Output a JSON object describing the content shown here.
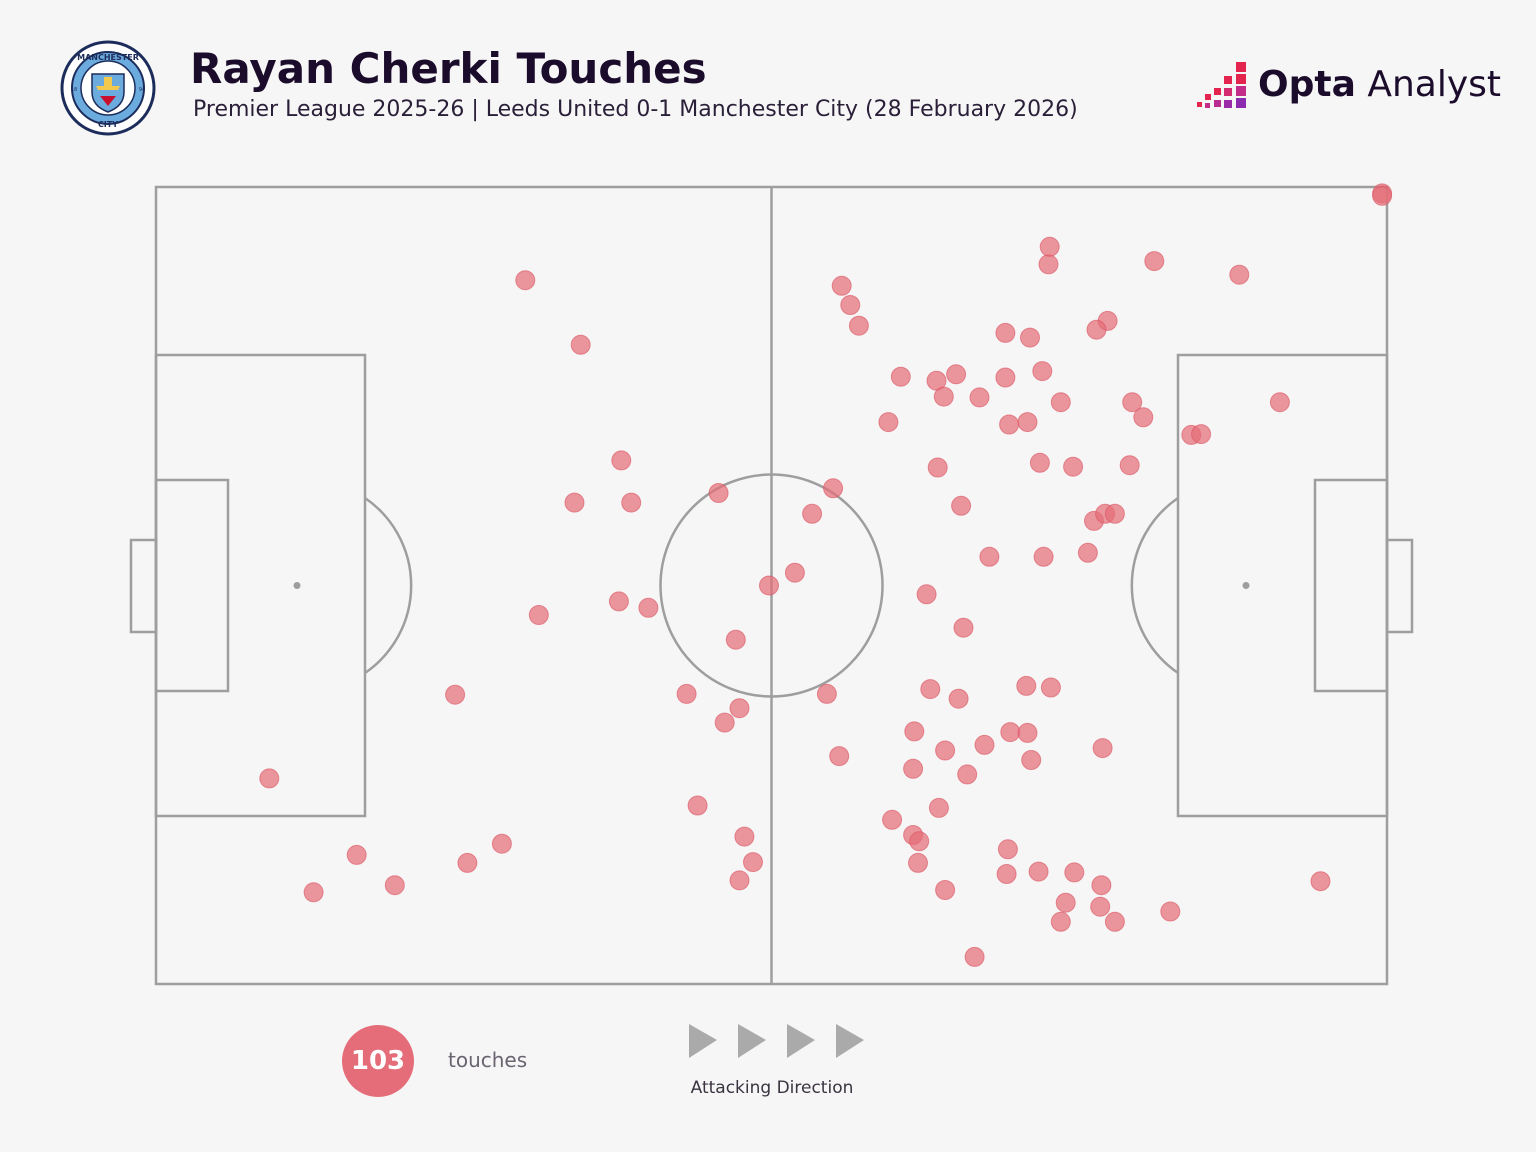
{
  "header": {
    "title": "Rayan Cherki Touches",
    "subtitle": "Premier League 2025-26 | Leeds United 0-1 Manchester City (28 February 2026)",
    "crest_top_text": "MANCHESTER",
    "crest_bottom_text": "CITY",
    "crest_year_left": "18",
    "crest_year_right": "94"
  },
  "brand": {
    "name_bold": "Opta",
    "name_light": "Analyst",
    "icon": "opta-pixel-icon"
  },
  "legend": {
    "count": "103",
    "count_label": "touches",
    "direction_label": "Attacking Direction",
    "direction_icon": "play-arrow-icon"
  },
  "colors": {
    "background": "#f7f6f6",
    "touch": "#e46d79",
    "pitch_lines": "#9e9e9e",
    "title": "#1b0c2c"
  },
  "chart_data": {
    "type": "scatter",
    "title": "Rayan Cherki Touches",
    "xlabel": "",
    "ylabel": "",
    "xlim": [
      0,
      100
    ],
    "ylim": [
      0,
      100
    ],
    "grid": false,
    "points": [
      [
        30.0,
        88.3
      ],
      [
        34.5,
        80.2
      ],
      [
        37.8,
        65.7
      ],
      [
        34.0,
        60.4
      ],
      [
        38.6,
        60.4
      ],
      [
        31.1,
        46.3
      ],
      [
        37.6,
        48.0
      ],
      [
        40.0,
        47.2
      ],
      [
        24.3,
        36.3
      ],
      [
        9.2,
        25.8
      ],
      [
        16.3,
        16.2
      ],
      [
        12.8,
        11.5
      ],
      [
        19.4,
        12.4
      ],
      [
        25.3,
        15.2
      ],
      [
        28.1,
        17.6
      ],
      [
        45.7,
        61.6
      ],
      [
        53.3,
        59.0
      ],
      [
        55.0,
        62.2
      ],
      [
        49.8,
        50.0
      ],
      [
        51.9,
        51.6
      ],
      [
        47.1,
        43.2
      ],
      [
        43.1,
        36.4
      ],
      [
        47.4,
        34.6
      ],
      [
        46.2,
        32.8
      ],
      [
        54.5,
        36.4
      ],
      [
        55.5,
        28.6
      ],
      [
        44.0,
        22.4
      ],
      [
        47.8,
        18.5
      ],
      [
        48.5,
        15.3
      ],
      [
        47.4,
        13.0
      ],
      [
        55.7,
        87.6
      ],
      [
        56.4,
        85.2
      ],
      [
        57.1,
        82.6
      ],
      [
        60.5,
        76.2
      ],
      [
        63.4,
        75.7
      ],
      [
        64.0,
        73.7
      ],
      [
        65.0,
        76.5
      ],
      [
        59.5,
        70.5
      ],
      [
        66.9,
        73.6
      ],
      [
        69.0,
        76.1
      ],
      [
        69.3,
        70.2
      ],
      [
        70.8,
        70.5
      ],
      [
        69.0,
        81.7
      ],
      [
        71.0,
        81.1
      ],
      [
        72.0,
        76.9
      ],
      [
        72.5,
        90.3
      ],
      [
        72.6,
        92.5
      ],
      [
        81.1,
        90.7
      ],
      [
        88.0,
        89.0
      ],
      [
        77.3,
        83.2
      ],
      [
        76.4,
        82.1
      ],
      [
        73.5,
        73.0
      ],
      [
        79.3,
        73.0
      ],
      [
        80.2,
        71.1
      ],
      [
        84.1,
        68.9
      ],
      [
        91.3,
        73.0
      ],
      [
        63.5,
        64.8
      ],
      [
        65.4,
        60.0
      ],
      [
        71.8,
        65.4
      ],
      [
        74.5,
        64.9
      ],
      [
        79.1,
        65.1
      ],
      [
        76.2,
        58.1
      ],
      [
        77.1,
        59.0
      ],
      [
        77.9,
        59.0
      ],
      [
        67.7,
        53.6
      ],
      [
        72.1,
        53.6
      ],
      [
        75.7,
        54.1
      ],
      [
        62.6,
        48.9
      ],
      [
        65.6,
        44.7
      ],
      [
        70.7,
        37.4
      ],
      [
        72.7,
        37.2
      ],
      [
        62.9,
        37.0
      ],
      [
        65.2,
        35.8
      ],
      [
        61.6,
        31.7
      ],
      [
        64.1,
        29.3
      ],
      [
        67.3,
        30.0
      ],
      [
        69.4,
        31.6
      ],
      [
        70.8,
        31.5
      ],
      [
        71.1,
        28.1
      ],
      [
        76.9,
        29.6
      ],
      [
        61.5,
        27.0
      ],
      [
        65.9,
        26.3
      ],
      [
        63.6,
        22.1
      ],
      [
        59.8,
        20.6
      ],
      [
        61.5,
        18.7
      ],
      [
        62.0,
        17.9
      ],
      [
        61.9,
        15.2
      ],
      [
        69.2,
        16.9
      ],
      [
        69.1,
        13.8
      ],
      [
        71.7,
        14.1
      ],
      [
        74.6,
        14.0
      ],
      [
        76.8,
        12.4
      ],
      [
        64.1,
        11.8
      ],
      [
        73.9,
        10.2
      ],
      [
        76.7,
        9.7
      ],
      [
        73.5,
        7.8
      ],
      [
        77.9,
        7.8
      ],
      [
        82.4,
        9.1
      ],
      [
        66.5,
        3.4
      ],
      [
        94.6,
        12.9
      ],
      [
        99.6,
        99.2
      ],
      [
        99.6,
        98.9
      ],
      [
        84.9,
        69.0
      ]
    ]
  }
}
